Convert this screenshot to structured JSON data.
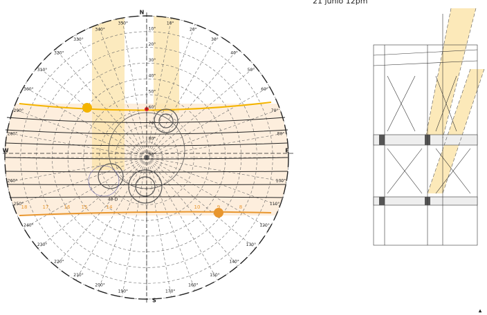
{
  "title": "21 junio 12pm",
  "compass": {
    "north": "N",
    "south": "S",
    "east": "E",
    "west": "W"
  },
  "azimuth_labels": [
    "10°",
    "20°",
    "30°",
    "40°",
    "50°",
    "60°",
    "70°",
    "80°",
    "100°",
    "110°",
    "120°",
    "130°",
    "140°",
    "150°",
    "160°",
    "170°",
    "190°",
    "200°",
    "210°",
    "220°",
    "230°",
    "240°",
    "250°",
    "260°",
    "280°",
    "290°",
    "300°",
    "310°",
    "320°",
    "330°",
    "340°",
    "350°"
  ],
  "altitude_labels": [
    "10°",
    "20°",
    "30°",
    "40°",
    "50°",
    "60°",
    "70°",
    "80°",
    "90°"
  ],
  "hour_labels": [
    "18",
    "17",
    "16",
    "15",
    "14",
    "10",
    "9",
    "8"
  ],
  "marker": "40-D"
}
